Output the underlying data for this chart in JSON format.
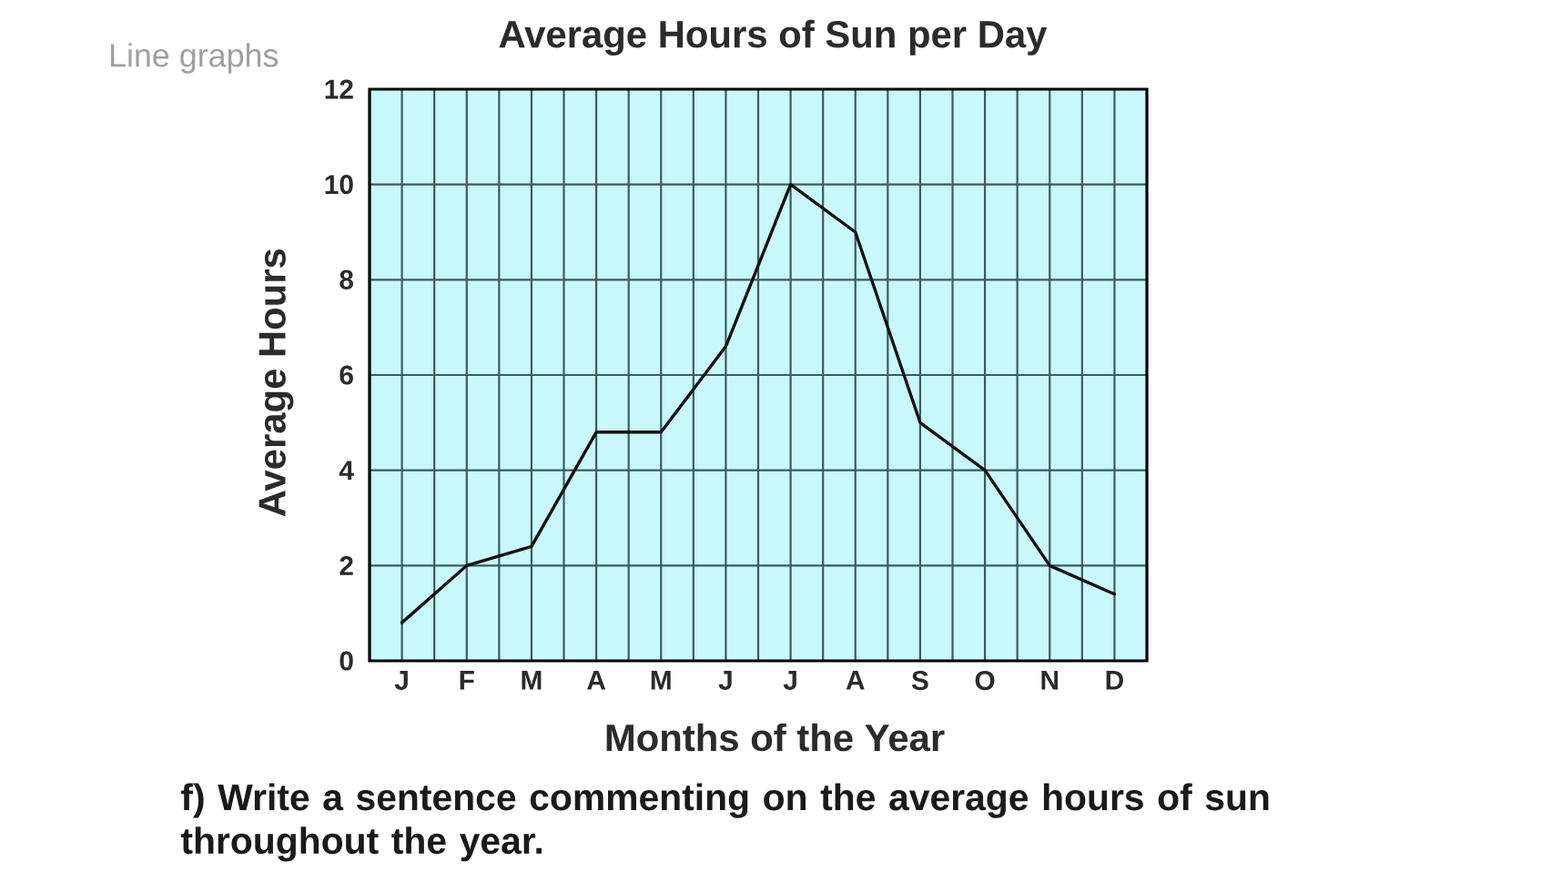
{
  "chart_data": {
    "type": "line",
    "title": "Average Hours of Sun per Day",
    "xlabel": "Months of the Year",
    "ylabel": "Average Hours",
    "categories": [
      "J",
      "F",
      "M",
      "A",
      "M",
      "J",
      "J",
      "A",
      "S",
      "O",
      "N",
      "D"
    ],
    "series": [
      {
        "color": "#111111",
        "values": [
          0.8,
          2,
          2.4,
          4.8,
          4.8,
          6.6,
          10,
          9,
          5,
          4,
          2,
          1.4
        ]
      }
    ],
    "ylim": [
      0,
      12
    ],
    "yticks": [
      0,
      2,
      4,
      6,
      8,
      10,
      12
    ],
    "grid": true,
    "line_style": "solid",
    "annotations": [
      "Line graphs",
      "f) Write a sentence commenting on the average hours of sun throughout the year."
    ]
  }
}
